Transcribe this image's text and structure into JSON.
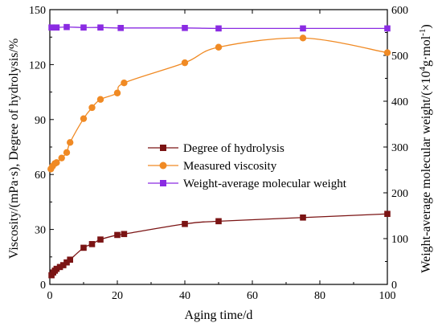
{
  "chart_data": {
    "type": "line",
    "xlabel": "Aging time/d",
    "ylabel_left": "Viscosity/(mPa·s), Degree of hydrolysis/%",
    "ylabel_right_prefix": "Weight-average molecular weight/(×10",
    "ylabel_right_sup1": "4",
    "ylabel_right_mid": "g·mol",
    "ylabel_right_sup2": "-1",
    "ylabel_right_suffix": ")",
    "xlim": [
      0,
      100
    ],
    "ylim_left": [
      0,
      150
    ],
    "ylim_right": [
      0,
      600
    ],
    "x_ticks": [
      "0",
      "20",
      "40",
      "60",
      "80",
      "100"
    ],
    "y_left_ticks": [
      "0",
      "30",
      "60",
      "90",
      "120",
      "150"
    ],
    "y_right_ticks": [
      "0",
      "100",
      "200",
      "300",
      "400",
      "500",
      "600"
    ],
    "grid": false,
    "legend_position": "center-right",
    "series": [
      {
        "name": "Degree of hydrolysis",
        "axis": "left",
        "color": "#7b1414",
        "marker": "square",
        "x": [
          0.5,
          1,
          1.5,
          2,
          3,
          4,
          5,
          6,
          10,
          12.5,
          15,
          20,
          22,
          40,
          50,
          75,
          100
        ],
        "y": [
          5,
          6.5,
          7.5,
          8.5,
          9.5,
          10.5,
          12,
          13.5,
          20,
          22,
          24.5,
          27,
          27.5,
          33,
          34.5,
          36.5,
          38.5
        ]
      },
      {
        "name": "Measured viscosity",
        "axis": "left",
        "color": "#f08a24",
        "marker": "circle",
        "x": [
          0.3,
          0.8,
          1.5,
          2,
          3.5,
          5,
          6,
          10,
          12.5,
          15,
          20,
          22,
          40,
          50,
          75,
          100
        ],
        "y": [
          63,
          64.5,
          66,
          66.5,
          69,
          72,
          77.5,
          90.5,
          96.5,
          101,
          104.5,
          110,
          121,
          129.5,
          134.5,
          126.5
        ]
      },
      {
        "name": "Weight-average molecular weight",
        "axis": "right",
        "color": "#8a2be2",
        "marker": "square",
        "x": [
          0.5,
          2,
          5,
          10,
          15,
          21,
          40,
          50,
          75,
          100
        ],
        "y": [
          561,
          561,
          562,
          561,
          561,
          560,
          560,
          559,
          559,
          559
        ]
      }
    ]
  }
}
